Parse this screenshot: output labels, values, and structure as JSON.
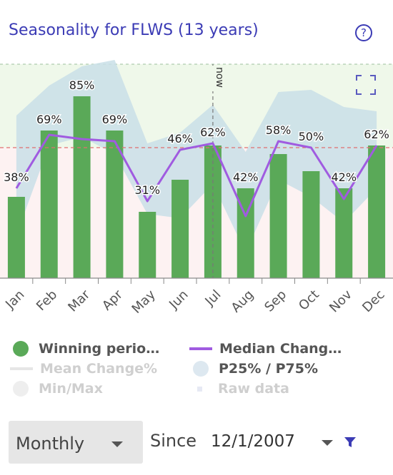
{
  "title": "Seasonality for FLWS (13 years)",
  "help_glyph": "?",
  "chart_data": {
    "type": "bar",
    "categories": [
      "Jan",
      "Feb",
      "Mar",
      "Apr",
      "May",
      "Jun",
      "Jul",
      "Aug",
      "Sep",
      "Oct",
      "Nov",
      "Dec"
    ],
    "series": [
      {
        "name": "Winning periods",
        "values": [
          38,
          69,
          85,
          69,
          31,
          46,
          62,
          42,
          58,
          50,
          42,
          62
        ],
        "labels": [
          "38%",
          "69%",
          "85%",
          "69%",
          "31%",
          "46%",
          "62%",
          "42%",
          "58%",
          "50%",
          "42%",
          "62%"
        ]
      },
      {
        "name": "Median Change",
        "values": [
          42,
          67,
          65,
          64,
          36,
          60,
          63,
          29,
          64,
          61,
          37,
          62
        ]
      },
      {
        "name": "P25% / P75%",
        "low": [
          20,
          62,
          66,
          58,
          30,
          28,
          44,
          12,
          46,
          38,
          26,
          42
        ],
        "high": [
          76,
          90,
          99,
          102,
          63,
          68,
          81,
          59,
          87,
          88,
          80,
          78
        ]
      }
    ],
    "reference_line": 61,
    "now_label": "now",
    "now_position": 6.5,
    "ylim": [
      0,
      100
    ],
    "colors": {
      "bar": "#5aa958",
      "median": "#a05be0",
      "band": "#c9dfe8",
      "upper_bg": "#eff8ea",
      "lower_bg": "#fdf2f2",
      "reference": "#e07070",
      "now": "#777777",
      "grid": "#9cbf9c"
    }
  },
  "legend": {
    "items": [
      {
        "label": "Winning perio…",
        "symbol": "dot",
        "color": "#5aa958",
        "active": true
      },
      {
        "label": "Median Chang…",
        "symbol": "line",
        "color": "#a05be0",
        "active": true
      },
      {
        "label": "Mean Change%",
        "symbol": "line",
        "color": "#e0e0e0",
        "active": false
      },
      {
        "label": "P25% / P75%",
        "symbol": "dot",
        "color": "#dde8f0",
        "active": true
      },
      {
        "label": "Min/Max",
        "symbol": "dot",
        "color": "#eeeeee",
        "active": false
      },
      {
        "label": "Raw data",
        "symbol": "square",
        "color": "#eef0f8",
        "active": false
      }
    ]
  },
  "controls": {
    "period": "Monthly",
    "since_label": "Since",
    "since_date": "12/1/2007"
  },
  "icons": {
    "help": "help-circle-icon",
    "fullscreen": "fullscreen-icon",
    "filter": "filter-icon",
    "dropdown": "chevron-down-icon"
  }
}
